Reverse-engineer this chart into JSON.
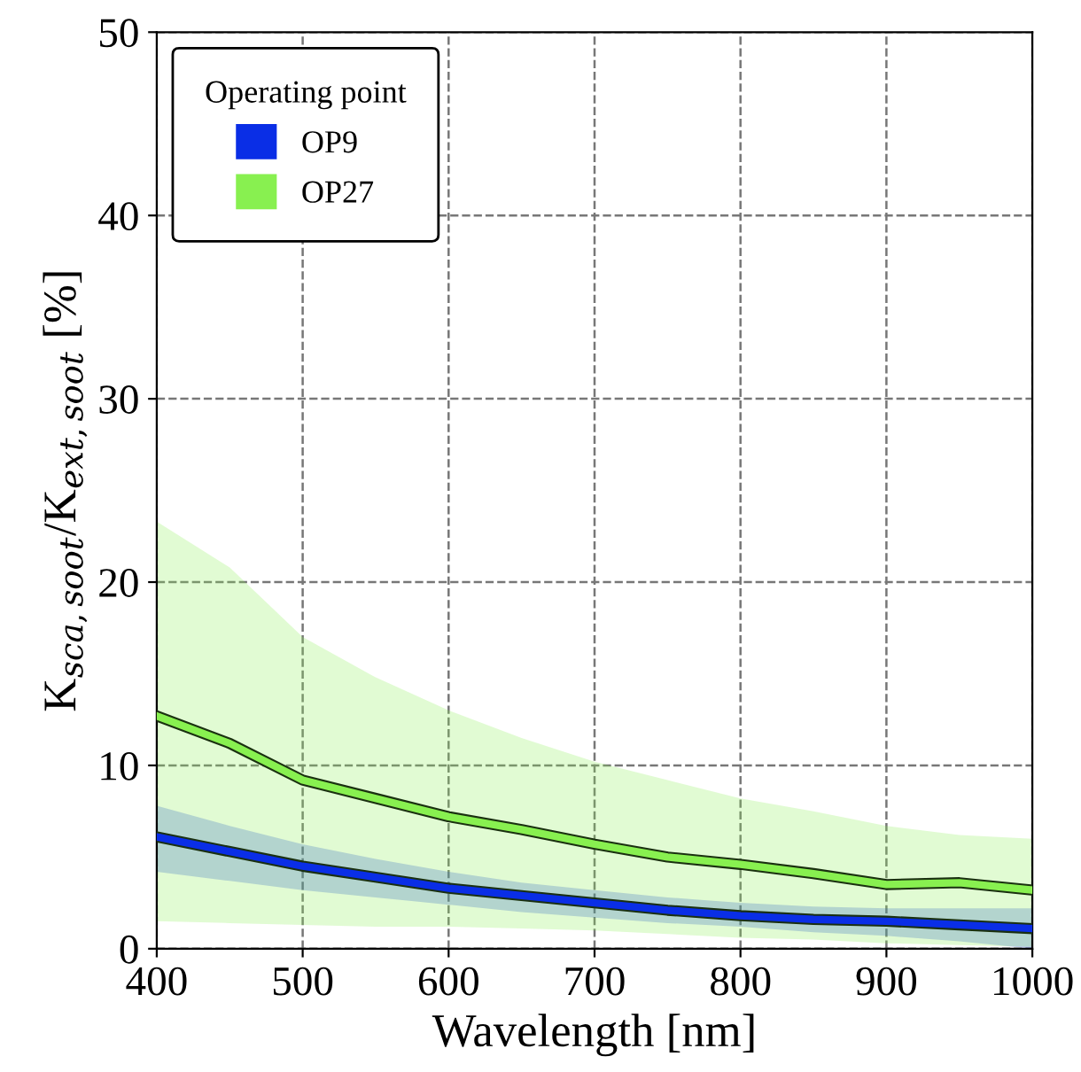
{
  "chart_data": {
    "type": "line",
    "xlabel": "Wavelength [nm]",
    "ylabel": "K$_{sca,soot}$/K$_{ext,soot}$ [%]",
    "legend_title": "Operating point",
    "legend": "top left",
    "grid": true,
    "line_style": "solid",
    "marker": "none",
    "xlim": [
      400,
      1000
    ],
    "ylim": [
      0,
      50
    ],
    "xticks": [
      400,
      500,
      600,
      700,
      800,
      900,
      1000
    ],
    "yticks": [
      0,
      10,
      20,
      30,
      40,
      50
    ],
    "x": [
      400,
      450,
      500,
      550,
      600,
      650,
      700,
      750,
      800,
      850,
      900,
      950,
      1000
    ],
    "series": [
      {
        "name": "OP9",
        "color": "#0a2ee6",
        "values": [
          6.1,
          5.3,
          4.5,
          3.9,
          3.3,
          2.9,
          2.5,
          2.1,
          1.8,
          1.6,
          1.5,
          1.3,
          1.1
        ],
        "lower": [
          4.2,
          3.7,
          3.2,
          2.8,
          2.4,
          2.0,
          1.7,
          1.4,
          1.2,
          0.9,
          0.7,
          0.4,
          0.0
        ],
        "upper": [
          7.8,
          6.7,
          5.7,
          4.9,
          4.2,
          3.6,
          3.2,
          2.8,
          2.5,
          2.3,
          2.2,
          2.2,
          2.2
        ]
      },
      {
        "name": "OP27",
        "color": "#88f050",
        "values": [
          12.7,
          11.2,
          9.2,
          8.2,
          7.2,
          6.5,
          5.7,
          5.0,
          4.6,
          4.1,
          3.5,
          3.6,
          3.2
        ],
        "lower": [
          1.5,
          1.4,
          1.3,
          1.2,
          1.2,
          1.1,
          1.0,
          0.8,
          0.6,
          0.5,
          0.3,
          0.2,
          0.1
        ],
        "upper": [
          23.3,
          20.8,
          17.0,
          14.8,
          13.0,
          11.5,
          10.2,
          9.2,
          8.2,
          7.5,
          6.7,
          6.2,
          6.0
        ]
      }
    ]
  }
}
